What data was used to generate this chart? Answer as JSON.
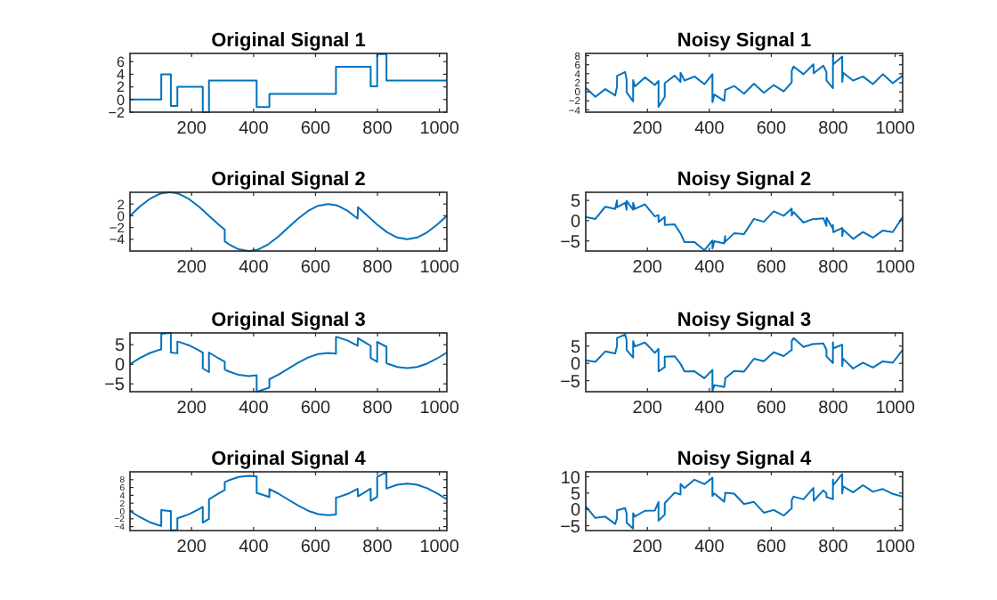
{
  "chart_data": [
    {
      "type": "line",
      "title": "Original Signal 1",
      "x": [
        1,
        32,
        64,
        96,
        102,
        102,
        128,
        133,
        133,
        154,
        154,
        160,
        192,
        224,
        236,
        236,
        256,
        256,
        288,
        307,
        307,
        320,
        352,
        384,
        410,
        410,
        416,
        448,
        451,
        451,
        480,
        512,
        544,
        576,
        608,
        640,
        666,
        666,
        672,
        704,
        736,
        737,
        768,
        778,
        778,
        799,
        799,
        800,
        829,
        829,
        832,
        864,
        896,
        928,
        960,
        992,
        1024
      ],
      "series": [
        {
          "color": "#0072bd",
          "values": [
            0,
            0,
            0,
            0,
            0,
            4,
            4,
            4,
            -1,
            -1,
            2,
            2,
            2,
            2,
            2,
            -2,
            -2,
            3,
            3,
            3,
            3,
            3,
            3,
            3,
            3,
            -1.2,
            -1.2,
            -1.2,
            -1.2,
            0.9,
            0.9,
            0.9,
            0.9,
            0.9,
            0.9,
            0.9,
            0.9,
            5.2,
            5.2,
            5.2,
            5.2,
            5.2,
            5.2,
            5.2,
            2.1,
            2.1,
            7.2,
            7.2,
            7.2,
            3,
            3,
            3,
            3,
            3,
            3,
            3,
            3
          ]
        }
      ],
      "xlim": [
        1,
        1024
      ],
      "xticks": [
        200,
        400,
        600,
        800,
        1000
      ],
      "ylim": [
        -2,
        7.3
      ],
      "yticks": [
        -2,
        0,
        2,
        4,
        6
      ]
    },
    {
      "type": "line",
      "title": "Noisy Signal 1",
      "x": [
        1,
        32,
        64,
        96,
        102,
        102,
        128,
        133,
        133,
        154,
        154,
        160,
        192,
        224,
        236,
        236,
        256,
        256,
        288,
        307,
        307,
        320,
        352,
        384,
        410,
        410,
        416,
        448,
        451,
        451,
        480,
        512,
        544,
        576,
        608,
        640,
        666,
        666,
        672,
        704,
        736,
        737,
        768,
        778,
        778,
        799,
        799,
        800,
        829,
        829,
        832,
        864,
        896,
        928,
        960,
        992,
        1024
      ],
      "series": [
        {
          "color": "#0072bd",
          "values": [
            0.9,
            -1.1,
            0.6,
            -0.8,
            1.2,
            3.5,
            4.4,
            2.7,
            -0.1,
            -2.1,
            2.6,
            1.2,
            3.2,
            1.5,
            2.4,
            -3.3,
            -1.1,
            1.9,
            3.6,
            2.2,
            4.2,
            2.5,
            3.4,
            1.7,
            3.9,
            -2.3,
            -0.6,
            -2.0,
            0,
            0.4,
            1.3,
            -0.4,
            1.8,
            -0.2,
            1.5,
            0.1,
            2.1,
            4.7,
            5.6,
            3.9,
            6.1,
            4.1,
            5.8,
            4.4,
            2.5,
            0.8,
            8.1,
            6.1,
            7.8,
            2.2,
            4.2,
            2.5,
            3.4,
            1.7,
            3.9,
            1.9,
            3.6
          ]
        }
      ],
      "xlim": [
        1,
        1024
      ],
      "xticks": [
        200,
        400,
        600,
        800,
        1000
      ],
      "ylim": [
        -4.5,
        8.5
      ],
      "yticks": [
        -4,
        -2,
        0,
        2,
        4,
        6,
        8
      ]
    },
    {
      "type": "line",
      "title": "Original Signal 2",
      "x": [
        1,
        32,
        64,
        96,
        102,
        102,
        128,
        133,
        133,
        154,
        154,
        160,
        192,
        224,
        236,
        236,
        256,
        256,
        288,
        307,
        307,
        320,
        352,
        384,
        410,
        410,
        416,
        448,
        451,
        451,
        480,
        512,
        544,
        576,
        608,
        640,
        666,
        666,
        672,
        704,
        736,
        737,
        768,
        778,
        778,
        799,
        799,
        800,
        829,
        829,
        832,
        864,
        896,
        928,
        960,
        992,
        1024
      ],
      "series": [
        {
          "color": "#0072bd",
          "values": [
            0,
            1.53,
            2.83,
            3.7,
            3.8,
            3.8,
            4,
            3.99,
            3.99,
            3.8,
            3.8,
            3.7,
            2.83,
            1.53,
            0.97,
            0.97,
            0,
            0,
            -1.53,
            -2.35,
            -4.35,
            -4.83,
            -5.7,
            -6,
            -5.8,
            -5.8,
            -5.7,
            -4.83,
            -4.72,
            -4.72,
            -3.53,
            -2,
            -0.47,
            0.83,
            1.7,
            2,
            1.8,
            1.8,
            1.7,
            0.83,
            -0.47,
            1.47,
            0,
            -0.49,
            -0.49,
            -1.49,
            -1.49,
            -1.53,
            -2.72,
            -2.72,
            -2.83,
            -3.7,
            -4,
            -3.7,
            -2.83,
            -1.53,
            0
          ]
        }
      ],
      "xlim": [
        1,
        1024
      ],
      "xticks": [
        200,
        400,
        600,
        800,
        1000
      ],
      "ylim": [
        -6,
        4
      ],
      "yticks": [
        -4,
        -2,
        0,
        2
      ]
    },
    {
      "type": "line",
      "title": "Noisy Signal 2",
      "x": [
        1,
        32,
        64,
        96,
        102,
        102,
        128,
        133,
        133,
        154,
        154,
        160,
        192,
        224,
        236,
        236,
        256,
        256,
        288,
        307,
        307,
        320,
        352,
        384,
        410,
        410,
        416,
        448,
        451,
        451,
        480,
        512,
        544,
        576,
        608,
        640,
        666,
        666,
        672,
        704,
        736,
        737,
        768,
        778,
        778,
        799,
        799,
        800,
        829,
        829,
        832,
        864,
        896,
        928,
        960,
        992,
        1024
      ],
      "series": [
        {
          "color": "#0072bd",
          "values": [
            0.9,
            0.43,
            3.43,
            2.9,
            5.0,
            3.3,
            4.4,
            2.69,
            4.89,
            2.7,
            4.4,
            2.9,
            4.03,
            1.03,
            1.37,
            -0.33,
            0.9,
            -1.1,
            -0.93,
            -3.15,
            -3.15,
            -5.33,
            -5.3,
            -7.3,
            -4.9,
            -6.9,
            -5.1,
            -5.63,
            -3.82,
            -5.22,
            -3.13,
            -3.3,
            0.43,
            -0.27,
            2.3,
            1.2,
            3.0,
            1.3,
            2.1,
            -0.47,
            0.43,
            0.37,
            0.6,
            -1.29,
            0.71,
            -1.99,
            -1.09,
            -2.83,
            -1.82,
            -3.82,
            -2.23,
            -4.5,
            -2.8,
            -4.2,
            -2.43,
            -2.83,
            0.9
          ]
        }
      ],
      "xlim": [
        1,
        1024
      ],
      "xticks": [
        200,
        400,
        600,
        800,
        1000
      ],
      "ylim": [
        -7.5,
        7
      ],
      "yticks": [
        -5,
        0,
        5
      ]
    },
    {
      "type": "line",
      "title": "Original Signal 3",
      "x": [
        1,
        32,
        64,
        96,
        102,
        102,
        128,
        133,
        133,
        154,
        154,
        160,
        192,
        224,
        236,
        236,
        256,
        256,
        288,
        307,
        307,
        320,
        352,
        384,
        410,
        410,
        416,
        448,
        451,
        451,
        480,
        512,
        544,
        576,
        608,
        640,
        666,
        666,
        672,
        704,
        736,
        737,
        768,
        778,
        778,
        799,
        799,
        800,
        829,
        829,
        832,
        864,
        896,
        928,
        960,
        992,
        1024
      ],
      "series": [
        {
          "color": "#0072bd",
          "values": [
            0,
            1.53,
            2.83,
            3.7,
            3.8,
            7.8,
            8,
            7.99,
            2.99,
            2.8,
            5.8,
            5.7,
            4.83,
            3.53,
            2.97,
            -1.03,
            -2,
            3,
            1.47,
            0.65,
            -1.35,
            -1.83,
            -2.7,
            -3,
            -2.8,
            -7,
            -6.9,
            -6.03,
            -5.92,
            -3.82,
            -2.63,
            -1.1,
            0.43,
            1.73,
            2.6,
            2.9,
            2.7,
            7,
            6.9,
            6.03,
            4.73,
            6.67,
            5.2,
            4.71,
            1.61,
            0.61,
            5.71,
            5.67,
            4.48,
            0.28,
            0.17,
            -0.7,
            -1,
            -0.7,
            0.17,
            1.47,
            3
          ]
        }
      ],
      "xlim": [
        1,
        1024
      ],
      "xticks": [
        200,
        400,
        600,
        800,
        1000
      ],
      "ylim": [
        -7,
        8
      ],
      "yticks": [
        -5,
        0,
        5
      ]
    },
    {
      "type": "line",
      "title": "Noisy Signal 3",
      "x": [
        1,
        32,
        64,
        96,
        102,
        102,
        128,
        133,
        133,
        154,
        154,
        160,
        192,
        224,
        236,
        236,
        256,
        256,
        288,
        307,
        307,
        320,
        352,
        384,
        410,
        410,
        416,
        448,
        451,
        451,
        480,
        512,
        544,
        576,
        608,
        640,
        666,
        666,
        672,
        704,
        736,
        737,
        768,
        778,
        778,
        799,
        799,
        800,
        829,
        829,
        832,
        864,
        896,
        928,
        960,
        992,
        1024
      ],
      "series": [
        {
          "color": "#0072bd",
          "values": [
            0.9,
            0.43,
            3.43,
            2.9,
            5.0,
            7.3,
            8.4,
            6.69,
            3.89,
            1.7,
            6.4,
            4.9,
            6.03,
            3.03,
            4.17,
            -2.33,
            -1.1,
            1.9,
            2.07,
            -0.15,
            -0.15,
            -2.33,
            -2.3,
            -4.3,
            -1.9,
            -8.1,
            -6.3,
            -6.83,
            -5.02,
            -4.32,
            -2.23,
            -2.4,
            1.33,
            0.63,
            3.2,
            2.1,
            3.9,
            6.5,
            7.3,
            4.73,
            5.63,
            5.57,
            5.8,
            3.91,
            2.01,
            0.11,
            6.11,
            4.37,
            5.38,
            -0.82,
            1.37,
            -1.5,
            0.2,
            -1.2,
            0.57,
            0.17,
            3.9
          ]
        }
      ],
      "xlim": [
        1,
        1024
      ],
      "xticks": [
        200,
        400,
        600,
        800,
        1000
      ],
      "ylim": [
        -8.2,
        8.8
      ],
      "yticks": [
        -5,
        0,
        5
      ]
    },
    {
      "type": "line",
      "title": "Original Signal 4",
      "x": [
        1,
        32,
        64,
        96,
        102,
        102,
        128,
        133,
        133,
        154,
        154,
        160,
        192,
        224,
        236,
        236,
        256,
        256,
        288,
        307,
        307,
        320,
        352,
        384,
        410,
        410,
        416,
        448,
        451,
        451,
        480,
        512,
        544,
        576,
        608,
        640,
        666,
        666,
        672,
        704,
        736,
        737,
        768,
        778,
        778,
        799,
        799,
        800,
        829,
        829,
        832,
        864,
        896,
        928,
        960,
        992,
        1024
      ],
      "series": [
        {
          "color": "#0072bd",
          "values": [
            0,
            -1.53,
            -2.83,
            -3.7,
            -3.8,
            0.2,
            0,
            0.01,
            -4.99,
            -4.8,
            -1.8,
            -1.7,
            -0.83,
            0.47,
            1.03,
            -2.97,
            -2,
            3,
            4.53,
            5.35,
            7.35,
            7.83,
            8.7,
            9,
            8.8,
            4.6,
            4.5,
            3.63,
            3.52,
            5.62,
            4.43,
            2.9,
            1.37,
            0.07,
            -0.8,
            -1.1,
            -0.9,
            3.4,
            3.5,
            4.37,
            5.67,
            3.73,
            5.2,
            5.69,
            2.59,
            3.59,
            8.69,
            8.73,
            9.92,
            5.72,
            5.83,
            6.7,
            7,
            6.7,
            5.83,
            4.53,
            3
          ]
        }
      ],
      "xlim": [
        1,
        1024
      ],
      "xticks": [
        200,
        400,
        600,
        800,
        1000
      ],
      "ylim": [
        -5,
        10
      ],
      "yticks": [
        -4,
        -2,
        0,
        2,
        4,
        6,
        8
      ]
    },
    {
      "type": "line",
      "title": "Noisy Signal 4",
      "x": [
        1,
        32,
        64,
        96,
        102,
        102,
        128,
        133,
        133,
        154,
        154,
        160,
        192,
        224,
        236,
        236,
        256,
        256,
        288,
        307,
        307,
        320,
        352,
        384,
        410,
        410,
        416,
        448,
        451,
        451,
        480,
        512,
        544,
        576,
        608,
        640,
        666,
        666,
        672,
        704,
        736,
        737,
        768,
        778,
        778,
        799,
        799,
        800,
        829,
        829,
        832,
        864,
        896,
        928,
        960,
        992,
        1024
      ],
      "series": [
        {
          "color": "#0072bd",
          "values": [
            0.9,
            -2.63,
            -2.23,
            -4.5,
            -2.6,
            -0.3,
            0.4,
            -1.29,
            -4.09,
            -5.9,
            -1.2,
            -2.2,
            -0.43,
            -0.33,
            2.23,
            -3.47,
            -1.6,
            1.9,
            5.13,
            4.55,
            7.75,
            6.53,
            9.1,
            7.7,
            9.7,
            4.1,
            4.9,
            2.33,
            4.42,
            5.12,
            4.83,
            1.6,
            2.27,
            -1.03,
            -0.2,
            -1.9,
            0.3,
            2.9,
            3.9,
            3.07,
            6.57,
            2.63,
            5.8,
            4.89,
            3.79,
            3.09,
            9.09,
            7.43,
            10.82,
            4.92,
            7.03,
            5.2,
            7.4,
            5.4,
            6.23,
            4.73,
            3.9
          ]
        }
      ],
      "xlim": [
        1,
        1024
      ],
      "xticks": [
        200,
        400,
        600,
        800,
        1000
      ],
      "ylim": [
        -6.5,
        11.5
      ],
      "yticks": [
        -5,
        0,
        5,
        10
      ]
    }
  ]
}
